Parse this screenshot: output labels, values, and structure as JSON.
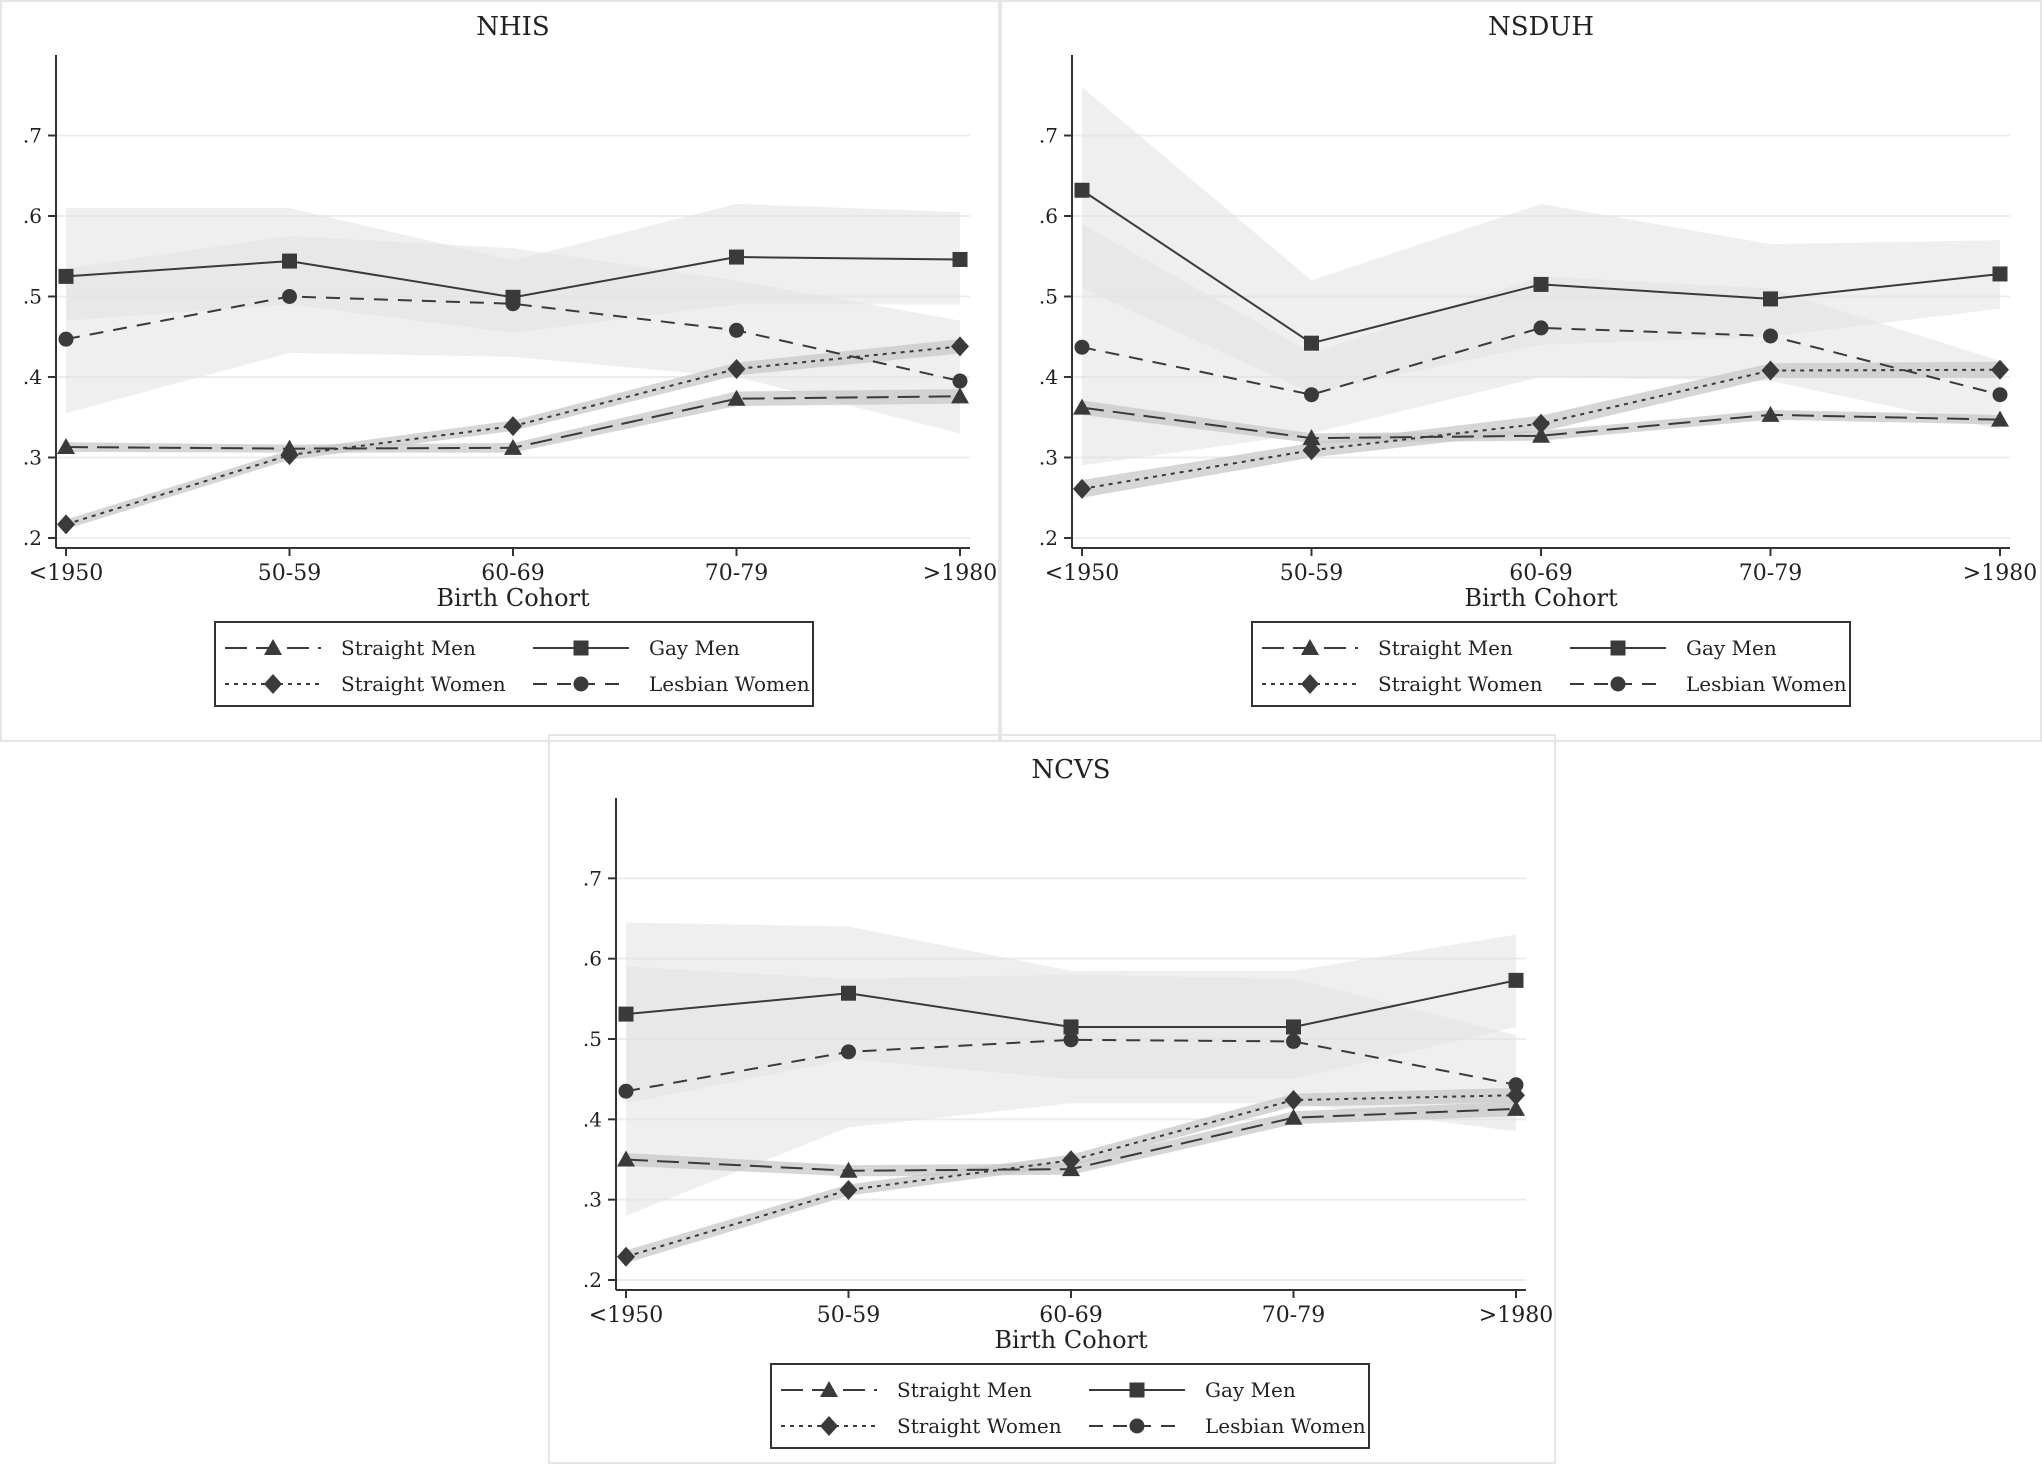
{
  "x_axis_title": "Birth Cohort",
  "legend_labels": [
    "Straight Men",
    "Gay Men",
    "Straight Women",
    "Lesbian Women"
  ],
  "chart_data": [
    {
      "type": "line",
      "title": "NHIS",
      "xlabel": "Birth Cohort",
      "ylabel": "",
      "categories": [
        "<1950",
        "50-59",
        "60-69",
        "70-79",
        ">1980"
      ],
      "ylim": [
        0.2,
        0.8
      ],
      "yticks": [
        ".2",
        ".3",
        ".4",
        ".5",
        ".6",
        ".7"
      ],
      "grid": true,
      "legend": "bottom",
      "series": [
        {
          "name": "Straight Men",
          "values": [
            0.313,
            0.311,
            0.312,
            0.373,
            0.376
          ],
          "ci_low": [
            0.307,
            0.306,
            0.306,
            0.364,
            0.367
          ],
          "ci_high": [
            0.319,
            0.316,
            0.318,
            0.382,
            0.385
          ]
        },
        {
          "name": "Gay Men",
          "values": [
            0.525,
            0.544,
            0.499,
            0.549,
            0.546
          ],
          "ci_low": [
            0.47,
            0.49,
            0.455,
            0.49,
            0.49
          ],
          "ci_high": [
            0.61,
            0.61,
            0.545,
            0.615,
            0.605
          ]
        },
        {
          "name": "Straight Women",
          "values": [
            0.217,
            0.303,
            0.339,
            0.41,
            0.438
          ],
          "ci_low": [
            0.211,
            0.297,
            0.333,
            0.402,
            0.429
          ],
          "ci_high": [
            0.223,
            0.309,
            0.346,
            0.418,
            0.447
          ]
        },
        {
          "name": "Lesbian Women",
          "values": [
            0.447,
            0.5,
            0.491,
            0.458,
            0.395
          ],
          "ci_low": [
            0.355,
            0.43,
            0.425,
            0.4,
            0.33
          ],
          "ci_high": [
            0.535,
            0.575,
            0.56,
            0.52,
            0.47
          ]
        }
      ]
    },
    {
      "type": "line",
      "title": "NSDUH",
      "xlabel": "Birth Cohort",
      "ylabel": "",
      "categories": [
        "<1950",
        "50-59",
        "60-69",
        "70-79",
        ">1980"
      ],
      "ylim": [
        0.2,
        0.8
      ],
      "yticks": [
        ".2",
        ".3",
        ".4",
        ".5",
        ".6",
        ".7"
      ],
      "grid": true,
      "legend": "bottom",
      "series": [
        {
          "name": "Straight Men",
          "values": [
            0.362,
            0.324,
            0.327,
            0.353,
            0.347
          ],
          "ci_low": [
            0.353,
            0.318,
            0.321,
            0.347,
            0.341
          ],
          "ci_high": [
            0.371,
            0.33,
            0.333,
            0.359,
            0.353
          ]
        },
        {
          "name": "Gay Men",
          "values": [
            0.632,
            0.442,
            0.515,
            0.497,
            0.528
          ],
          "ci_low": [
            0.51,
            0.38,
            0.44,
            0.45,
            0.485
          ],
          "ci_high": [
            0.76,
            0.52,
            0.615,
            0.565,
            0.57
          ]
        },
        {
          "name": "Straight Women",
          "values": [
            0.261,
            0.309,
            0.342,
            0.408,
            0.409
          ],
          "ci_low": [
            0.25,
            0.3,
            0.332,
            0.399,
            0.399
          ],
          "ci_high": [
            0.272,
            0.318,
            0.352,
            0.417,
            0.419
          ]
        },
        {
          "name": "Lesbian Women",
          "values": [
            0.437,
            0.378,
            0.461,
            0.451,
            0.378
          ],
          "ci_low": [
            0.29,
            0.33,
            0.4,
            0.395,
            0.335
          ],
          "ci_high": [
            0.59,
            0.43,
            0.525,
            0.51,
            0.42
          ]
        }
      ]
    },
    {
      "type": "line",
      "title": "NCVS",
      "xlabel": "Birth Cohort",
      "ylabel": "",
      "categories": [
        "<1950",
        "50-59",
        "60-69",
        "70-79",
        ">1980"
      ],
      "ylim": [
        0.2,
        0.8
      ],
      "yticks": [
        ".2",
        ".3",
        ".4",
        ".5",
        ".6",
        ".7"
      ],
      "grid": true,
      "legend": "bottom",
      "series": [
        {
          "name": "Straight Men",
          "values": [
            0.35,
            0.336,
            0.338,
            0.402,
            0.413
          ],
          "ci_low": [
            0.342,
            0.329,
            0.331,
            0.394,
            0.404
          ],
          "ci_high": [
            0.358,
            0.343,
            0.345,
            0.41,
            0.422
          ]
        },
        {
          "name": "Gay Men",
          "values": [
            0.531,
            0.557,
            0.515,
            0.515,
            0.573
          ],
          "ci_low": [
            0.42,
            0.475,
            0.45,
            0.45,
            0.515
          ],
          "ci_high": [
            0.645,
            0.64,
            0.585,
            0.585,
            0.63
          ]
        },
        {
          "name": "Straight Women",
          "values": [
            0.229,
            0.312,
            0.349,
            0.424,
            0.43
          ],
          "ci_low": [
            0.221,
            0.305,
            0.342,
            0.416,
            0.421
          ],
          "ci_high": [
            0.237,
            0.319,
            0.356,
            0.432,
            0.439
          ]
        },
        {
          "name": "Lesbian Women",
          "values": [
            0.435,
            0.484,
            0.499,
            0.497,
            0.443
          ],
          "ci_low": [
            0.28,
            0.39,
            0.42,
            0.42,
            0.385
          ],
          "ci_high": [
            0.59,
            0.575,
            0.58,
            0.575,
            0.505
          ]
        }
      ]
    }
  ]
}
